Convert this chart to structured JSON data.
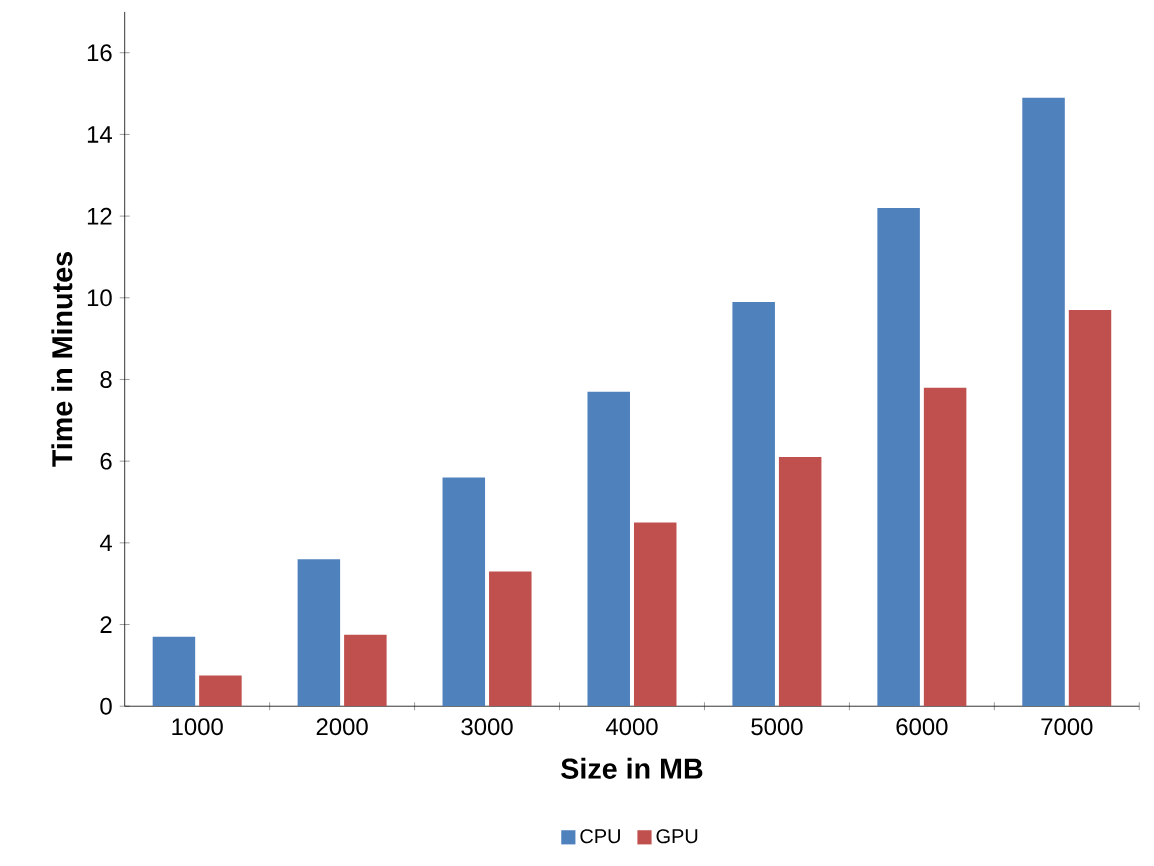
{
  "chart_data": {
    "type": "bar",
    "xlabel": "Size in MB",
    "ylabel": "Time in Minutes",
    "categories": [
      "1000",
      "2000",
      "3000",
      "4000",
      "5000",
      "6000",
      "7000"
    ],
    "series": [
      {
        "name": "CPU",
        "color": "#4f81bd",
        "values": [
          1.7,
          3.6,
          5.6,
          7.7,
          9.9,
          12.2,
          14.9
        ]
      },
      {
        "name": "GPU",
        "color": "#c0504d",
        "values": [
          0.75,
          1.75,
          3.3,
          4.5,
          6.1,
          7.8,
          9.7
        ]
      }
    ],
    "ylim": [
      0,
      17
    ],
    "yticks": [
      0,
      2,
      4,
      6,
      8,
      10,
      12,
      14,
      16
    ],
    "grid": false,
    "legend": "bottom"
  }
}
